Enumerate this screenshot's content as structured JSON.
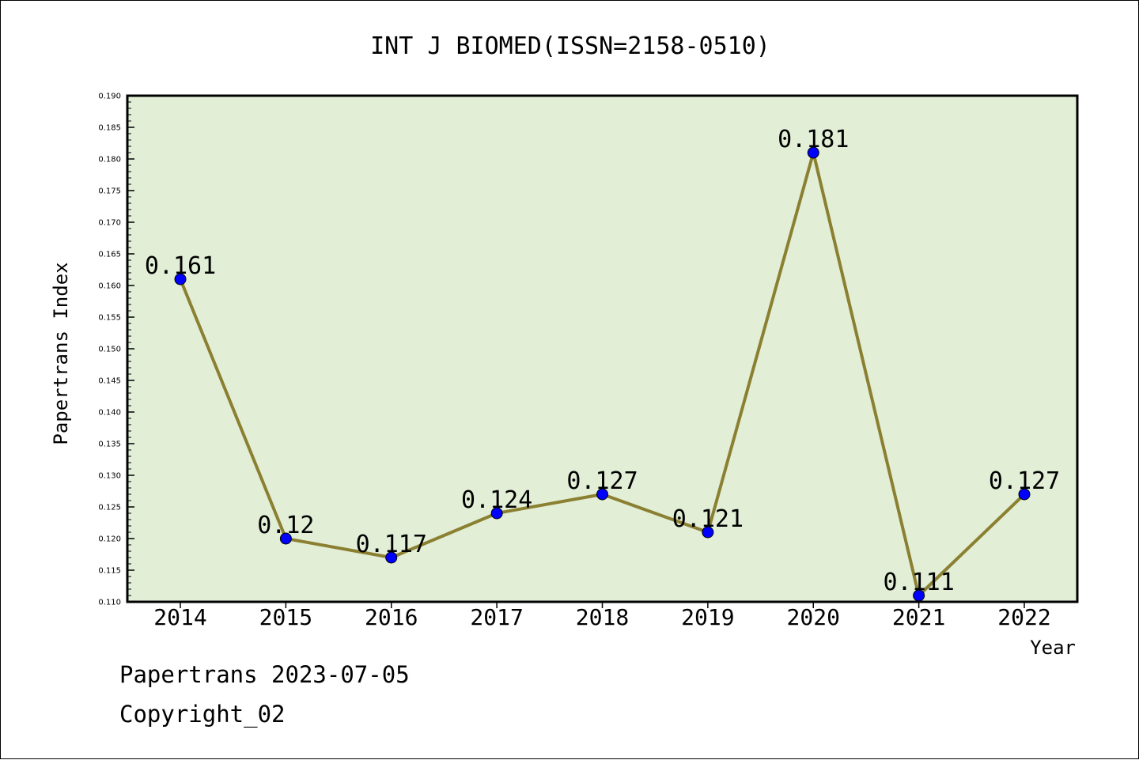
{
  "chart_data": {
    "type": "line",
    "title": "INT J BIOMED(ISSN=2158-0510)",
    "xlabel": "Year",
    "ylabel": "Papertrans Index",
    "categories": [
      "2014",
      "2015",
      "2016",
      "2017",
      "2018",
      "2019",
      "2020",
      "2021",
      "2022"
    ],
    "series": [
      {
        "values": [
          0.161,
          0.12,
          0.117,
          0.124,
          0.127,
          0.121,
          0.181,
          0.111,
          0.127
        ],
        "labels": [
          "0.161",
          "0.12",
          "0.117",
          "0.124",
          "0.127",
          "0.121",
          "0.181",
          "0.111",
          "0.127"
        ]
      }
    ],
    "ylim": [
      0.11,
      0.19
    ],
    "yticks": [
      "0.110",
      "0.115",
      "0.120",
      "0.125",
      "0.130",
      "0.135",
      "0.140",
      "0.145",
      "0.150",
      "0.155",
      "0.160",
      "0.165",
      "0.170",
      "0.175",
      "0.180",
      "0.185",
      "0.190"
    ],
    "grid": false,
    "legend": "none",
    "colors": {
      "plot_background": "#e2efd6",
      "line": "#8b8032",
      "marker": "#0000ff",
      "frame": "#000000"
    }
  },
  "footer": {
    "line1": "Papertrans 2023-07-05",
    "line2": "Copyright_02"
  }
}
